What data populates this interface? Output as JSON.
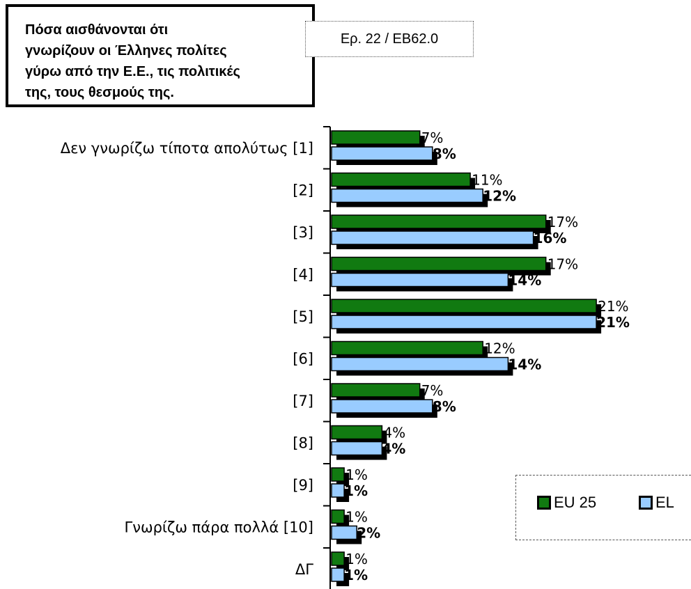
{
  "title_lines": [
    "Πόσα αισθάνονται ότι",
    "γνωρίζουν οι Έλληνες πολίτες",
    "γύρω από την Ε.Ε., τις πολιτικές",
    "της, τους θεσμούς της."
  ],
  "source": "Ερ. 22 / ΕΒ62.0",
  "colors": {
    "eu25": "#117a11",
    "el": "#99ccff",
    "shadow": "#000000"
  },
  "legend": [
    {
      "name": "EU 25",
      "color": "#117a11"
    },
    {
      "name": "EL",
      "color": "#99ccff"
    }
  ],
  "chart_data": {
    "type": "bar",
    "orientation": "horizontal",
    "title": "Πόσα αισθάνονται ότι γνωρίζουν οι Έλληνες πολίτες γύρω από την Ε.Ε., τις πολιτικές της, τους θεσμούς της.",
    "categories": [
      "Δεν γνωρίζω τίποτα απολύτως [1]",
      "[2]",
      "[3]",
      "[4]",
      "[5]",
      "[6]",
      "[7]",
      "[8]",
      "[9]",
      "Γνωρίζω πάρα πολλά [10]",
      "ΔΓ"
    ],
    "series": [
      {
        "name": "EU 25",
        "values": [
          7,
          11,
          17,
          17,
          21,
          12,
          7,
          4,
          1,
          1,
          1
        ],
        "labels": [
          "7%",
          "11%",
          "17%",
          "17%",
          "21%",
          "12%",
          "7%",
          "4%",
          "1%",
          "1%",
          "1%"
        ]
      },
      {
        "name": "EL",
        "values": [
          8,
          12,
          16,
          14,
          21,
          14,
          8,
          4,
          1,
          2,
          1
        ],
        "labels": [
          "8%",
          "12%",
          "16%",
          "14%",
          "21%",
          "14%",
          "8%",
          "4%",
          "1%",
          "2%",
          "1%"
        ]
      }
    ],
    "xlim": [
      0,
      21
    ],
    "grid": false,
    "legend_position": "bottom-right"
  }
}
